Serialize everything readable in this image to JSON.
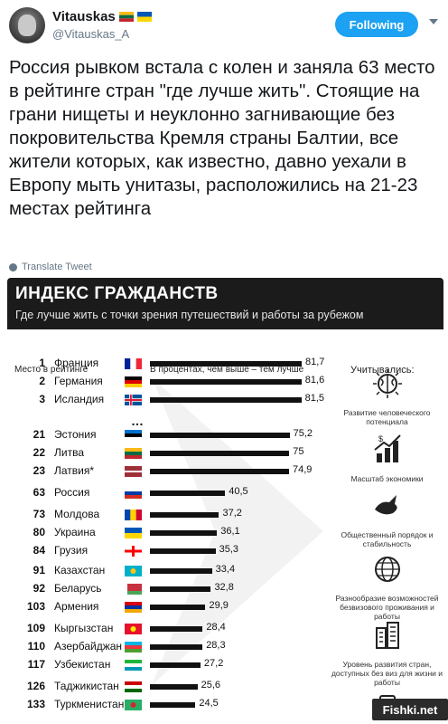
{
  "tweet": {
    "display_name": "Vitauskas",
    "handle": "@Vitauskas_A",
    "follow_label": "Following",
    "text": "Россия рывком встала с колен и заняла 63 место в рейтинге стран \"где лучше жить\". Стоящие на грани нищеты и неуклонно загнивающие без покровительства Кремля страны Балтии, все жители которых, как известно, давно уехали в Европу мыть унитазы, расположились на 21-23 местах рейтинга",
    "translate_label": "Translate Tweet"
  },
  "infographic": {
    "title": "ИНДЕКС ГРАЖДАНСТВ",
    "subtitle": "Где лучше жить с точки зрения путешествий и работы за рубежом",
    "col_rank": "Место в рейтинге",
    "col_percent": "В процентах, чем выше – тем лучше",
    "col_factors": "Учитывались:",
    "ellipsis": "…",
    "factors": [
      {
        "label": "Развитие человеческого потенциала",
        "icon": "brain-icon"
      },
      {
        "label": "Масштаб экономики",
        "icon": "money-growth-icon"
      },
      {
        "label": "Общественный порядок и стабильность",
        "icon": "dove-icon"
      },
      {
        "label": "Разнообразие возможностей безвизового проживания и работы",
        "icon": "globe-icon"
      },
      {
        "label": "Уровень развития стран, доступных без виз для жизни и работы",
        "icon": "buildings-icon"
      }
    ]
  },
  "chart_data": {
    "type": "bar",
    "title": "ИНДЕКС ГРАЖДАНСТВ",
    "categories": [
      "Франция",
      "Германия",
      "Исландия",
      "Эстония",
      "Литва",
      "Латвия*",
      "Россия",
      "Молдова",
      "Украина",
      "Грузия",
      "Казахстан",
      "Беларусь",
      "Армения",
      "Кыргызстан",
      "Азербайджан",
      "Узбекистан",
      "Таджикистан",
      "Туркменистан"
    ],
    "ranks": [
      "1",
      "2",
      "3",
      "21",
      "22",
      "23",
      "63",
      "73",
      "80",
      "84",
      "91",
      "92",
      "103",
      "109",
      "110",
      "117",
      "126",
      "133"
    ],
    "values": [
      81.7,
      81.6,
      81.5,
      75.2,
      75,
      74.9,
      40.5,
      37.2,
      36.1,
      35.3,
      33.4,
      32.8,
      29.9,
      28.4,
      28.3,
      27.2,
      25.6,
      24.5
    ],
    "value_labels": [
      "81,7",
      "81,6",
      "81,5",
      "75,2",
      "75",
      "74,9",
      "40,5",
      "37,2",
      "36,1",
      "35,3",
      "33,4",
      "32,8",
      "29,9",
      "28,4",
      "28,3",
      "27,2",
      "25,6",
      "24,5"
    ],
    "flags": [
      "fr",
      "de",
      "is",
      "ee",
      "lt",
      "lv",
      "ru",
      "md",
      "ua",
      "ge",
      "kz",
      "by",
      "am",
      "kg",
      "az",
      "uz",
      "tj",
      "tm"
    ],
    "xlim": [
      0,
      81.7
    ]
  },
  "watermark": "Fishki.net"
}
